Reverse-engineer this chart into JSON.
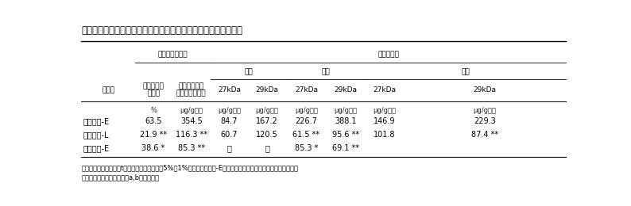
{
  "title": "表３．莢先熟発生程度と各ステージにおける茎皮層のＶＳＰ含量",
  "rows": [
    [
      "スズマル-E",
      "63.5",
      "354.5",
      "84.7",
      "167.2",
      "226.7",
      "388.1",
      "146.9",
      "229.3"
    ],
    [
      "スズマル-L",
      "21.9 **",
      "116.3 **",
      "60.7",
      "120.5",
      "61.5 **",
      "95.6 **",
      "101.8",
      "87.4 **"
    ],
    [
      "スズカリ-E",
      "38.6 *",
      "85.3 **",
      "－",
      "－",
      "85.3 *",
      "69.1 **",
      "",
      ""
    ]
  ],
  "footnote1": "＊，＊＊を付した値はt検定においてそれぞれ5%，1%水準でスズマル-E区の値に対して有意差があることを示す．",
  "footnote2": "注）茎皮層のクロロフィルa,b含量の合計",
  "background_color": "#ffffff",
  "text_color": "#000000",
  "fontsize_title": 8.5,
  "fontsize_header": 6.5,
  "fontsize_cell": 7.0,
  "fontsize_unit": 6.0,
  "fontsize_footnote": 6.0
}
